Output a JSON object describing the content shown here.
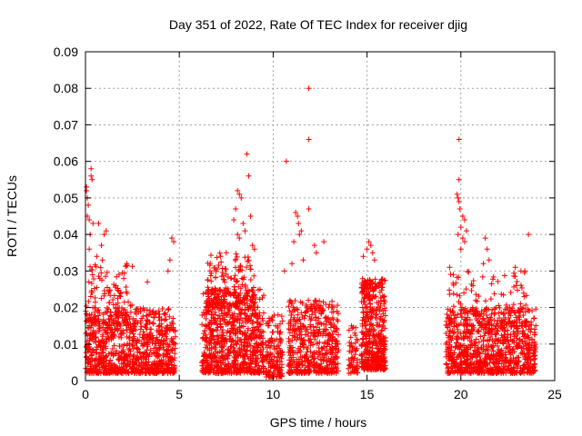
{
  "chart_data": {
    "type": "scatter",
    "title": "Day 351 of 2022, Rate Of TEC Index for receiver djig",
    "xlabel": "GPS time / hours",
    "ylabel": "ROTI / TECUs",
    "xlim": [
      0,
      25
    ],
    "ylim": [
      0,
      0.09
    ],
    "x_ticks": [
      0,
      5,
      10,
      15,
      20,
      25
    ],
    "y_ticks": [
      0,
      0.01,
      0.02,
      0.03,
      0.04,
      0.05,
      0.06,
      0.07,
      0.08,
      0.09
    ],
    "x_tick_labels": [
      "0",
      "5",
      "10",
      "15",
      "20",
      "25"
    ],
    "y_tick_labels": [
      "0",
      "0.01",
      "0.02",
      "0.03",
      "0.04",
      "0.05",
      "0.06",
      "0.07",
      "0.08",
      "0.09"
    ],
    "grid": true,
    "marker": "+",
    "color": "#ff0000",
    "series": [
      {
        "name": "ROTI",
        "clusters": [
          {
            "x_range": [
              0.0,
              4.8
            ],
            "y_range": [
              0.002,
              0.02
            ],
            "count": 900
          },
          {
            "x_range": [
              0.0,
              2.5
            ],
            "y_range": [
              0.015,
              0.032
            ],
            "count": 120
          },
          {
            "x_range": [
              6.2,
              9.5
            ],
            "y_range": [
              0.002,
              0.025
            ],
            "count": 800
          },
          {
            "x_range": [
              6.5,
              9.0
            ],
            "y_range": [
              0.02,
              0.035
            ],
            "count": 150
          },
          {
            "x_range": [
              9.6,
              10.5
            ],
            "y_range": [
              0.001,
              0.018
            ],
            "count": 150
          },
          {
            "x_range": [
              10.8,
              13.5
            ],
            "y_range": [
              0.002,
              0.022
            ],
            "count": 500
          },
          {
            "x_range": [
              14.0,
              14.5
            ],
            "y_range": [
              0.002,
              0.015
            ],
            "count": 60
          },
          {
            "x_range": [
              14.7,
              16.0
            ],
            "y_range": [
              0.003,
              0.028
            ],
            "count": 450
          },
          {
            "x_range": [
              19.2,
              24.0
            ],
            "y_range": [
              0.002,
              0.02
            ],
            "count": 900
          },
          {
            "x_range": [
              19.3,
              23.5
            ],
            "y_range": [
              0.015,
              0.03
            ],
            "count": 130
          }
        ],
        "points": [
          [
            0.05,
            0.053
          ],
          [
            0.05,
            0.052
          ],
          [
            0.1,
            0.05
          ],
          [
            0.1,
            0.045
          ],
          [
            0.15,
            0.048
          ],
          [
            0.2,
            0.044
          ],
          [
            0.3,
            0.058
          ],
          [
            0.3,
            0.056
          ],
          [
            0.35,
            0.055
          ],
          [
            0.4,
            0.043
          ],
          [
            0.25,
            0.04
          ],
          [
            0.2,
            0.036
          ],
          [
            0.7,
            0.043
          ],
          [
            0.85,
            0.037
          ],
          [
            1.0,
            0.04
          ],
          [
            1.1,
            0.041
          ],
          [
            0.6,
            0.034
          ],
          [
            0.9,
            0.033
          ],
          [
            4.6,
            0.039
          ],
          [
            4.7,
            0.038
          ],
          [
            4.5,
            0.033
          ],
          [
            4.4,
            0.03
          ],
          [
            2.2,
            0.032
          ],
          [
            3.3,
            0.027
          ],
          [
            8.1,
            0.052
          ],
          [
            8.2,
            0.051
          ],
          [
            8.3,
            0.05
          ],
          [
            8.6,
            0.062
          ],
          [
            8.7,
            0.056
          ],
          [
            8.8,
            0.045
          ],
          [
            8.0,
            0.047
          ],
          [
            7.9,
            0.044
          ],
          [
            8.4,
            0.043
          ],
          [
            8.5,
            0.041
          ],
          [
            8.1,
            0.04
          ],
          [
            8.2,
            0.039
          ],
          [
            7.5,
            0.035
          ],
          [
            7.2,
            0.034
          ],
          [
            8.9,
            0.037
          ],
          [
            9.0,
            0.036
          ],
          [
            10.7,
            0.06
          ],
          [
            11.9,
            0.08
          ],
          [
            11.9,
            0.066
          ],
          [
            11.9,
            0.047
          ],
          [
            11.2,
            0.046
          ],
          [
            11.3,
            0.045
          ],
          [
            11.35,
            0.043
          ],
          [
            11.5,
            0.041
          ],
          [
            11.1,
            0.038
          ],
          [
            11.4,
            0.04
          ],
          [
            12.7,
            0.038
          ],
          [
            12.2,
            0.037
          ],
          [
            12.3,
            0.035
          ],
          [
            11.6,
            0.033
          ],
          [
            10.6,
            0.03
          ],
          [
            11.0,
            0.032
          ],
          [
            15.1,
            0.038
          ],
          [
            15.2,
            0.037
          ],
          [
            15.0,
            0.036
          ],
          [
            15.3,
            0.035
          ],
          [
            14.8,
            0.034
          ],
          [
            15.4,
            0.033
          ],
          [
            19.9,
            0.066
          ],
          [
            19.9,
            0.055
          ],
          [
            19.8,
            0.051
          ],
          [
            19.85,
            0.05
          ],
          [
            19.9,
            0.049
          ],
          [
            19.95,
            0.047
          ],
          [
            20.1,
            0.045
          ],
          [
            20.2,
            0.044
          ],
          [
            20.0,
            0.042
          ],
          [
            20.3,
            0.041
          ],
          [
            20.1,
            0.039
          ],
          [
            20.2,
            0.038
          ],
          [
            19.85,
            0.04
          ],
          [
            20.0,
            0.036
          ],
          [
            21.3,
            0.039
          ],
          [
            21.4,
            0.036
          ],
          [
            23.6,
            0.04
          ],
          [
            21.5,
            0.033
          ],
          [
            21.2,
            0.032
          ],
          [
            22.9,
            0.031
          ],
          [
            23.2,
            0.03
          ],
          [
            19.4,
            0.031
          ],
          [
            19.6,
            0.029
          ]
        ]
      }
    ]
  }
}
